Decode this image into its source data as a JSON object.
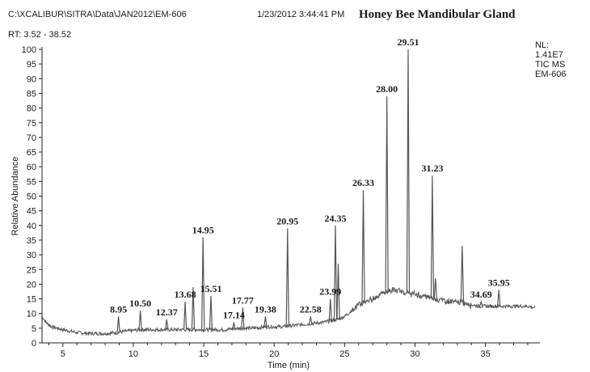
{
  "header": {
    "file_path": "C:\\XCALIBUR\\SITRA\\Data\\JAN2012\\EM-606",
    "timestamp": "1/23/2012 3:44:41 PM",
    "title": "Honey Bee Mandibular Gland",
    "rt_range": "RT:  3.52 - 38.52"
  },
  "info": {
    "lines": [
      "NL:",
      "1.41E7",
      "TIC MS",
      "EM-606"
    ]
  },
  "colors": {
    "trace": "#555555",
    "axis": "#222222",
    "text": "#1a1a1a"
  },
  "chart_data": {
    "type": "line",
    "title": "Honey Bee Mandibular Gland",
    "xlabel": "Time (min)",
    "ylabel": "Relative Abundance",
    "xlim": [
      3.52,
      38.52
    ],
    "ylim": [
      0,
      100
    ],
    "x_ticks": [
      5,
      10,
      15,
      20,
      25,
      30,
      35
    ],
    "y_ticks": [
      0,
      5,
      10,
      15,
      20,
      25,
      30,
      35,
      40,
      45,
      50,
      55,
      60,
      65,
      70,
      75,
      80,
      85,
      90,
      95,
      100
    ],
    "grid": false,
    "baseline": [
      [
        3.52,
        9
      ],
      [
        3.8,
        7
      ],
      [
        4.2,
        5.5
      ],
      [
        5.0,
        4.5
      ],
      [
        6.0,
        3.5
      ],
      [
        7.0,
        3.2
      ],
      [
        8.0,
        3.2
      ],
      [
        8.8,
        3.5
      ],
      [
        9.5,
        4
      ],
      [
        10.5,
        4.5
      ],
      [
        11.5,
        4.5
      ],
      [
        12.5,
        4.5
      ],
      [
        13.5,
        4.5
      ],
      [
        14.5,
        4.5
      ],
      [
        15.5,
        4.5
      ],
      [
        16.5,
        4.5
      ],
      [
        17.5,
        5
      ],
      [
        18.5,
        5
      ],
      [
        19.5,
        5.5
      ],
      [
        20.5,
        5.5
      ],
      [
        21.5,
        6
      ],
      [
        22.5,
        6.5
      ],
      [
        23.5,
        7
      ],
      [
        24.5,
        8
      ],
      [
        25.0,
        9
      ],
      [
        25.5,
        11
      ],
      [
        26.0,
        13
      ],
      [
        26.5,
        14
      ],
      [
        27.0,
        15
      ],
      [
        27.5,
        16.5
      ],
      [
        28.0,
        17.5
      ],
      [
        28.5,
        18
      ],
      [
        29.0,
        17.5
      ],
      [
        29.5,
        17
      ],
      [
        30.0,
        16.5
      ],
      [
        30.5,
        16
      ],
      [
        31.0,
        15.5
      ],
      [
        31.5,
        15
      ],
      [
        32.0,
        14.5
      ],
      [
        32.5,
        14
      ],
      [
        33.0,
        14
      ],
      [
        33.5,
        13.5
      ],
      [
        34.0,
        13
      ],
      [
        34.5,
        12.5
      ],
      [
        35.0,
        12.5
      ],
      [
        35.5,
        12.5
      ],
      [
        36.0,
        12.5
      ],
      [
        37.0,
        12.5
      ],
      [
        38.0,
        12.5
      ],
      [
        38.52,
        12
      ]
    ],
    "peaks": [
      {
        "x": 8.95,
        "y": 9,
        "label": "8.95"
      },
      {
        "x": 10.5,
        "y": 11,
        "label": "10.50"
      },
      {
        "x": 12.37,
        "y": 8,
        "label": "12.37"
      },
      {
        "x": 13.68,
        "y": 14,
        "label": "13.68"
      },
      {
        "x": 14.25,
        "y": 19,
        "label": ""
      },
      {
        "x": 14.95,
        "y": 36,
        "label": "14.95"
      },
      {
        "x": 15.51,
        "y": 16,
        "label": "15.51"
      },
      {
        "x": 17.14,
        "y": 7,
        "label": "17.14"
      },
      {
        "x": 17.77,
        "y": 12,
        "label": "17.77"
      },
      {
        "x": 19.38,
        "y": 9,
        "label": "19.38"
      },
      {
        "x": 20.95,
        "y": 39,
        "label": "20.95"
      },
      {
        "x": 22.58,
        "y": 9,
        "label": "22.58"
      },
      {
        "x": 23.99,
        "y": 15,
        "label": "23.99"
      },
      {
        "x": 24.35,
        "y": 40,
        "label": "24.35"
      },
      {
        "x": 24.55,
        "y": 27,
        "label": ""
      },
      {
        "x": 26.33,
        "y": 52,
        "label": "26.33"
      },
      {
        "x": 28.0,
        "y": 84,
        "label": "28.00"
      },
      {
        "x": 29.51,
        "y": 100,
        "label": "29.51"
      },
      {
        "x": 31.23,
        "y": 57,
        "label": "31.23"
      },
      {
        "x": 31.45,
        "y": 22,
        "label": ""
      },
      {
        "x": 33.35,
        "y": 33,
        "label": ""
      },
      {
        "x": 34.69,
        "y": 14,
        "label": "34.69"
      },
      {
        "x": 35.95,
        "y": 18,
        "label": "35.95"
      }
    ]
  }
}
